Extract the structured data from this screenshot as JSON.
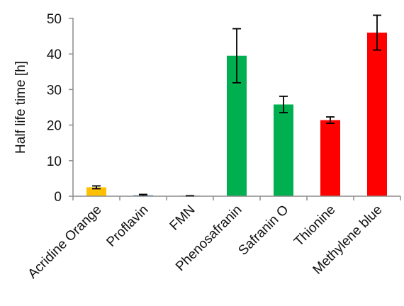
{
  "chart_data": {
    "type": "bar",
    "title": "",
    "xlabel": "",
    "ylabel": "Half life time [h]",
    "ylim": [
      0,
      50
    ],
    "yticks": [
      0,
      10,
      20,
      30,
      40,
      50
    ],
    "grid": false,
    "legend": "none",
    "categories": [
      "Acridine Orange",
      "Proflavin",
      "FMN",
      "Phenosafranin",
      "Safranin O",
      "Thionine",
      "Methylene blue"
    ],
    "values": [
      2.5,
      0.3,
      0.1,
      39.5,
      25.8,
      21.4,
      46.0
    ],
    "errors": [
      0.4,
      0.2,
      0.1,
      7.6,
      2.3,
      0.9,
      4.9
    ],
    "colors": [
      "#FFC000",
      "#5B9BD5",
      "#A5A5A5",
      "#00B050",
      "#00B050",
      "#FF0000",
      "#FF0000"
    ]
  }
}
